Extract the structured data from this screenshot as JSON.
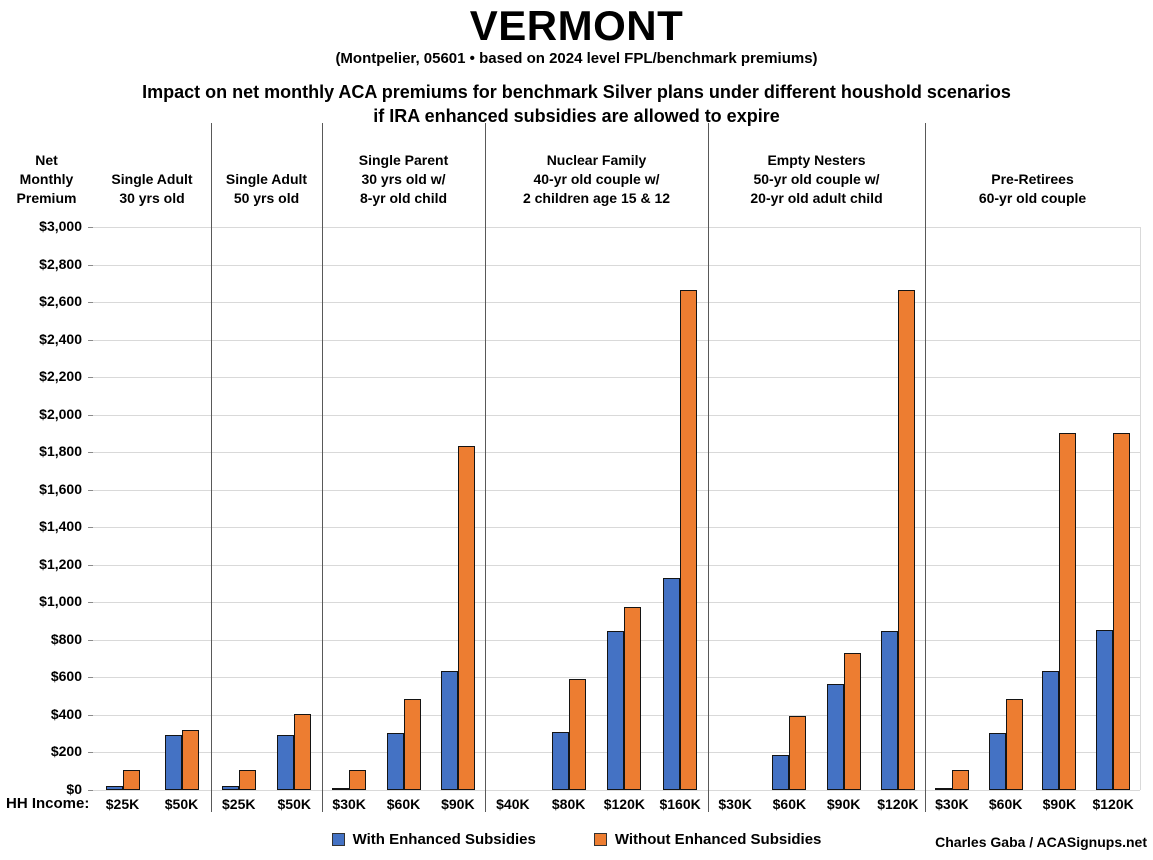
{
  "chart_data": {
    "type": "bar",
    "title": "VERMONT",
    "subtitle": "(Montpelier, 05601 • based on 2024 level FPL/benchmark premiums)",
    "description_line1": "Impact on net monthly ACA premiums for benchmark Silver plans under different houshold scenarios",
    "description_line2": "if IRA enhanced subsidies are allowed to expire",
    "ylabel_lines": [
      "Net",
      "Monthly",
      "Premium"
    ],
    "x_axis_prefix": "HH Income:",
    "ylim": [
      0,
      3000
    ],
    "ytick_step": 200,
    "grid": true,
    "legend_position": "bottom",
    "y_ticks_top_to_bottom": [
      "$3,000",
      "$2,800",
      "$2,600",
      "$2,400",
      "$2,200",
      "$2,000",
      "$1,800",
      "$1,600",
      "$1,400",
      "$1,200",
      "$1,000",
      "$800",
      "$600",
      "$400",
      "$200",
      "$0"
    ],
    "series": [
      {
        "name": "With Enhanced Subsidies",
        "color": "#4472C4"
      },
      {
        "name": "Without Enhanced Subsidies",
        "color": "#ED7D31"
      }
    ],
    "groups": [
      {
        "label_lines": [
          "Single Adult",
          "30 yrs old"
        ],
        "categories": [
          "$25K",
          "$50K"
        ],
        "with_enhanced": [
          20,
          295
        ],
        "without_enhanced": [
          105,
          320
        ]
      },
      {
        "label_lines": [
          "Single Adult",
          "50 yrs old"
        ],
        "categories": [
          "$25K",
          "$50K"
        ],
        "with_enhanced": [
          20,
          295
        ],
        "without_enhanced": [
          105,
          405
        ]
      },
      {
        "label_lines": [
          "Single Parent",
          "30 yrs old w/",
          "8-yr old child"
        ],
        "categories": [
          "$30K",
          "$60K",
          "$90K"
        ],
        "with_enhanced": [
          10,
          305,
          635
        ],
        "without_enhanced": [
          105,
          485,
          1835
        ]
      },
      {
        "label_lines": [
          "Nuclear Family",
          "40-yr old couple w/",
          "2 children age 15 & 12"
        ],
        "categories": [
          "$40K",
          "$80K",
          "$120K",
          "$160K"
        ],
        "with_enhanced": [
          0,
          310,
          845,
          1130
        ],
        "without_enhanced": [
          0,
          590,
          975,
          2665
        ]
      },
      {
        "label_lines": [
          "Empty Nesters",
          "50-yr old couple w/",
          "20-yr old adult child"
        ],
        "categories": [
          "$30K",
          "$60K",
          "$90K",
          "$120K"
        ],
        "with_enhanced": [
          0,
          185,
          565,
          845
        ],
        "without_enhanced": [
          0,
          395,
          730,
          2665
        ]
      },
      {
        "label_lines": [
          "Pre-Retirees",
          "60-yr old couple"
        ],
        "categories": [
          "$30K",
          "$60K",
          "$90K",
          "$120K"
        ],
        "with_enhanced": [
          10,
          305,
          635,
          850
        ],
        "without_enhanced": [
          105,
          485,
          1900,
          1900
        ]
      }
    ],
    "footer_credit": "Charles Gaba / ACASignups.net"
  }
}
